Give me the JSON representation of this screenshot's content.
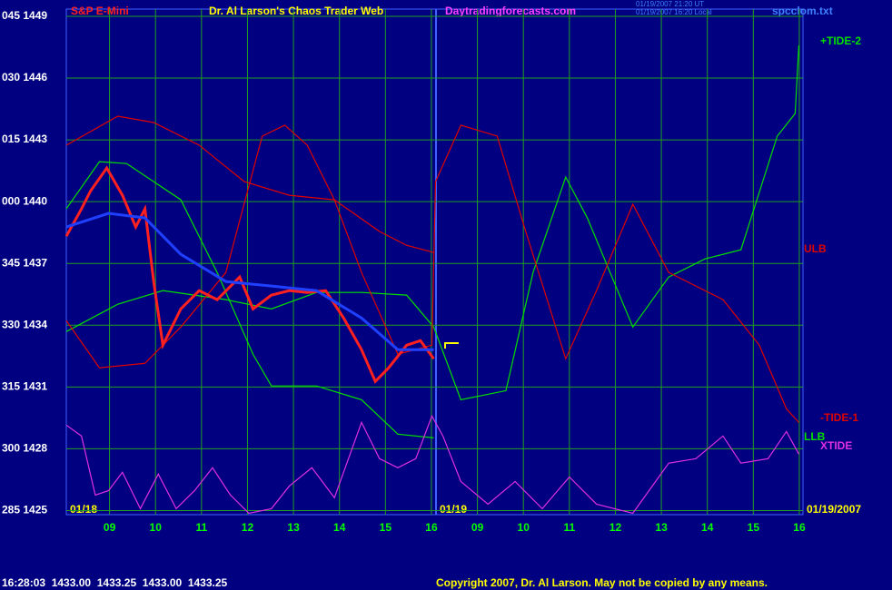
{
  "chart_data": {
    "type": "line",
    "title": "S&P E-Mini",
    "subtitle": "Dr. Al Larson's Chaos Trader Web",
    "site": "Daytradingforecasts.com",
    "timestamps": [
      "01/19/2007 21:20 UT",
      "01/19/2007 16:20 Local"
    ],
    "file": "spcclom.txt",
    "date_labels": [
      "01/18",
      "01/19",
      "01/19/2007"
    ],
    "quote": "16:28:03  1433.00  1433.25  1433.00  1433.25",
    "copyright": "Copyright 2007, Dr. Al Larson. May not be copied by any means.",
    "xlim": [
      8.06,
      24.08
    ],
    "xticks": [
      {
        "value": 9,
        "label": "09"
      },
      10,
      11,
      12,
      13,
      14,
      15,
      16,
      {
        "value": 17,
        "label": "09"
      },
      {
        "value": 18,
        "label": "10"
      },
      {
        "value": 19,
        "label": "11"
      },
      {
        "value": 20,
        "label": "12"
      },
      {
        "value": 21,
        "label": "13"
      },
      {
        "value": 22,
        "label": "14"
      },
      {
        "value": 23,
        "label": "15"
      },
      {
        "value": 24,
        "label": "16"
      }
    ],
    "ylim": [
      1424.8,
      1449.35
    ],
    "yticks": [
      {
        "value": 1425,
        "label": "285 1425"
      },
      {
        "value": 1428,
        "label": "300 1428"
      },
      {
        "value": 1431,
        "label": "315 1431"
      },
      {
        "value": 1434,
        "label": "330 1434"
      },
      {
        "value": 1437,
        "label": "345 1437"
      },
      {
        "value": 1440,
        "label": "000 1440"
      },
      {
        "value": 1443,
        "label": "015 1443"
      },
      {
        "value": 1446,
        "label": "030 1446"
      },
      {
        "value": 1449,
        "label": "045 1449"
      }
    ],
    "grid": true,
    "series": [
      {
        "name": "+TIDE-2",
        "color": "#00e000",
        "x": [
          8.06,
          9.18,
          10.16,
          11.53,
          12.52,
          13.5,
          14.48,
          15.46,
          16.05,
          16.64,
          17.62,
          18.21,
          18.92,
          19.39,
          20.38,
          21.16,
          21.95,
          22.73,
          23.52,
          23.91,
          23.99
        ],
        "values": [
          1433.69,
          1435.02,
          1435.68,
          1435.24,
          1434.79,
          1435.59,
          1435.59,
          1435.46,
          1433.91,
          1430.38,
          1430.82,
          1436.56,
          1441.19,
          1439.21,
          1433.91,
          1436.34,
          1437.22,
          1437.66,
          1443.18,
          1444.28,
          1447.59
        ]
      },
      {
        "name": "ULB",
        "color": "#e00000",
        "x": [
          8.06,
          9.18,
          9.96,
          10.95,
          11.93,
          12.91,
          13.89,
          14.87,
          15.46,
          16.05
        ],
        "values": [
          1442.74,
          1444.15,
          1443.84,
          1442.74,
          1440.97,
          1440.31,
          1440.09,
          1438.55,
          1437.88,
          1437.53
        ]
      },
      {
        "name": "-TIDE-1",
        "color": "#e00000",
        "x": [
          8.06,
          8.78,
          9.77,
          10.55,
          11.53,
          12.32,
          12.81,
          13.3,
          13.89,
          14.48,
          15.27,
          16.01,
          16.09,
          16.64,
          17.43,
          18.02,
          18.92,
          19.59,
          20.38,
          21.16,
          22.34,
          23.13,
          23.72,
          23.99
        ],
        "values": [
          1434.22,
          1431.93,
          1432.15,
          1433.91,
          1436.56,
          1443.18,
          1443.71,
          1442.74,
          1440.09,
          1436.56,
          1432.59,
          1433.03,
          1440.97,
          1443.71,
          1443.18,
          1438.77,
          1432.37,
          1435.68,
          1439.87,
          1436.56,
          1435.24,
          1433.03,
          1429.94,
          1429.28
        ]
      },
      {
        "name": "LLB",
        "color": "#00e000",
        "x": [
          8.06,
          8.78,
          9.37,
          10.55,
          11.34,
          12.12,
          12.52,
          13.5,
          14.48,
          15.27,
          16.05
        ],
        "values": [
          1439.65,
          1441.94,
          1441.85,
          1440.09,
          1436.56,
          1432.59,
          1431.05,
          1431.05,
          1430.38,
          1428.71,
          1428.53
        ]
      },
      {
        "name": "XTIDE",
        "color": "#e030e0",
        "x": [
          8.06,
          8.39,
          8.69,
          8.98,
          9.28,
          9.67,
          10.06,
          10.45,
          10.85,
          11.24,
          11.63,
          12.03,
          12.52,
          12.91,
          13.4,
          13.89,
          14.48,
          14.87,
          15.27,
          15.66,
          16.01,
          16.25,
          16.64,
          17.23,
          17.82,
          18.41,
          19.0,
          19.59,
          20.38,
          21.16,
          21.75,
          22.34,
          22.73,
          23.32,
          23.72,
          23.99
        ],
        "values": [
          1429.15,
          1428.62,
          1425.75,
          1425.97,
          1426.86,
          1425.09,
          1426.77,
          1425.09,
          1425.97,
          1427.08,
          1425.75,
          1424.87,
          1425.09,
          1426.19,
          1427.08,
          1425.62,
          1429.28,
          1427.52,
          1427.08,
          1427.52,
          1429.59,
          1428.62,
          1426.41,
          1425.31,
          1426.41,
          1425.09,
          1426.63,
          1425.31,
          1424.87,
          1427.3,
          1427.52,
          1428.62,
          1427.3,
          1427.52,
          1428.84,
          1427.74
        ]
      },
      {
        "color": "#ff2020",
        "x": [
          8.06,
          8.39,
          8.59,
          8.94,
          9.28,
          9.57,
          9.77,
          9.96,
          10.16,
          10.55,
          10.95,
          11.34,
          11.83,
          12.12,
          12.52,
          12.91,
          13.3,
          13.7,
          14.09,
          14.48,
          14.78,
          15.07,
          15.46,
          15.76,
          16.05
        ],
        "values": [
          1438.32,
          1439.65,
          1440.53,
          1441.63,
          1440.31,
          1438.77,
          1439.65,
          1436.12,
          1433.03,
          1434.79,
          1435.68,
          1435.24,
          1436.34,
          1434.79,
          1435.46,
          1435.68,
          1435.59,
          1435.68,
          1434.35,
          1432.81,
          1431.27,
          1431.93,
          1433.03,
          1433.25,
          1432.37
        ]
      },
      {
        "color": "#2040ff",
        "x": [
          8.06,
          8.98,
          9.77,
          10.55,
          11.53,
          12.52,
          13.5,
          14.48,
          15.27,
          16.05
        ],
        "values": [
          1438.77,
          1439.43,
          1439.21,
          1437.44,
          1436.12,
          1435.9,
          1435.68,
          1434.35,
          1432.81,
          1432.81
        ]
      }
    ]
  }
}
